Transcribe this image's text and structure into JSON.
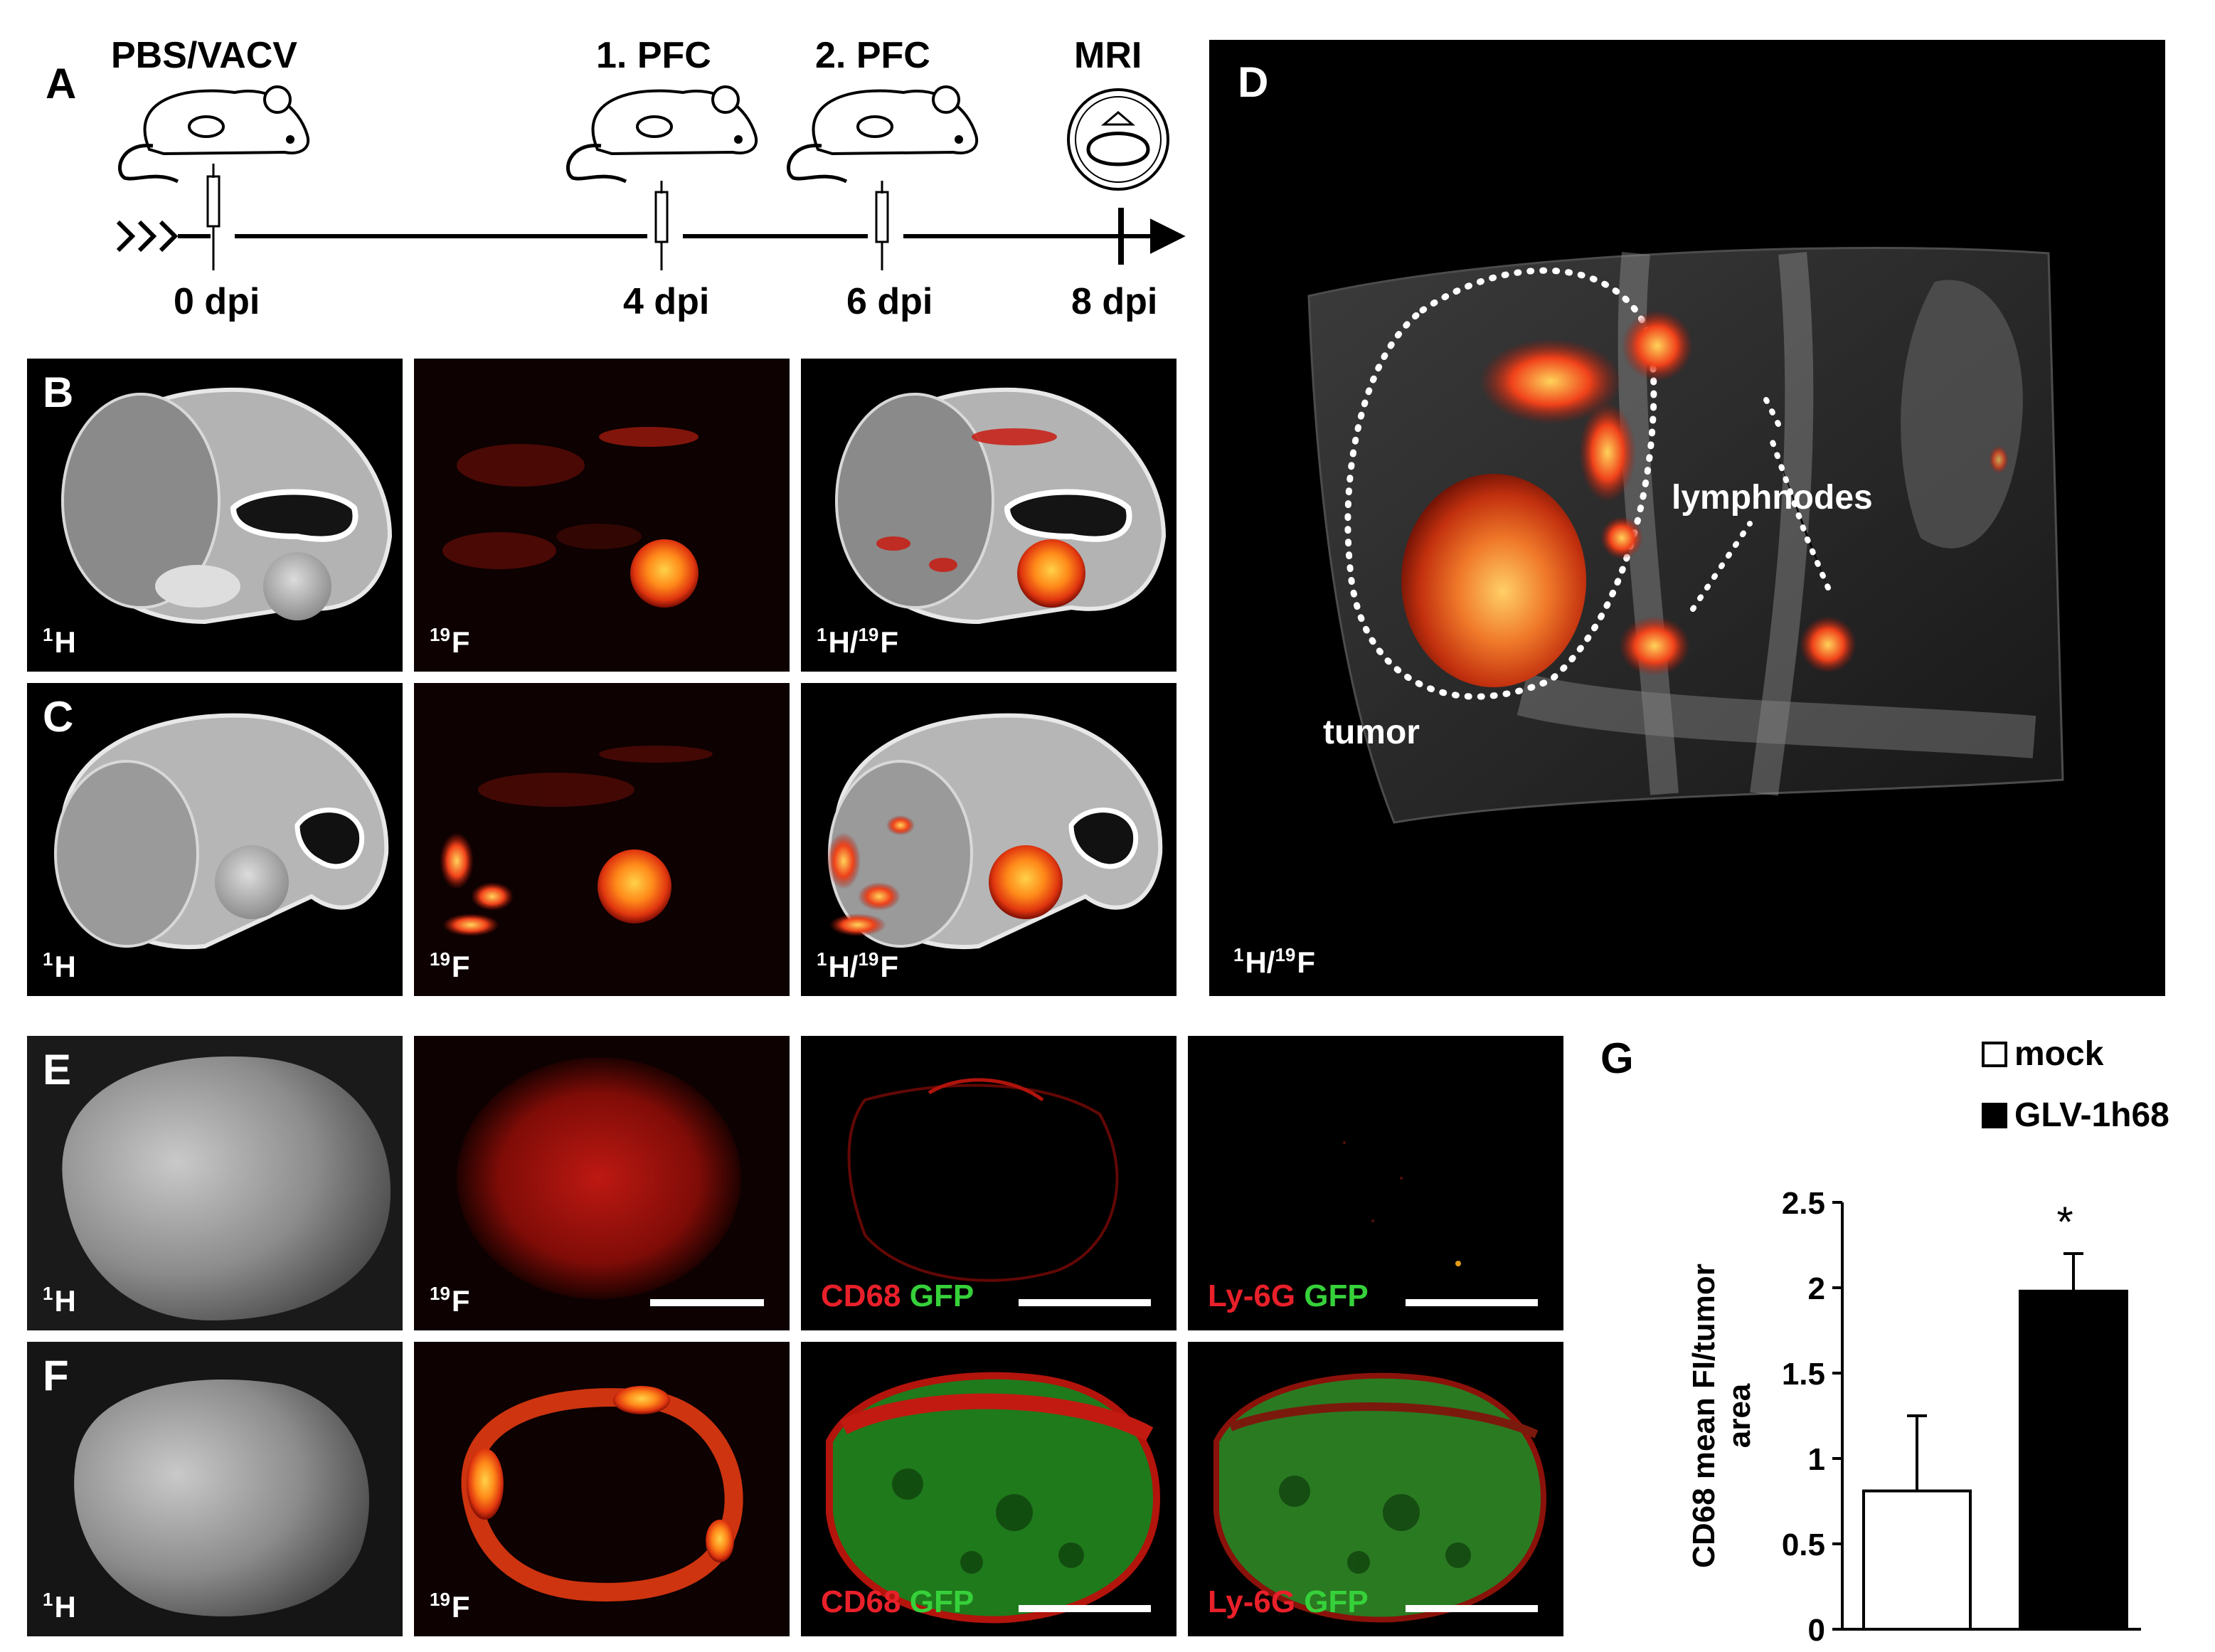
{
  "panels": {
    "A": {
      "label": "A",
      "labels": [
        "PBS/VACV",
        "1. PFC",
        "2. PFC",
        "MRI"
      ],
      "days": [
        "0 dpi",
        "4 dpi",
        "6 dpi",
        "8 dpi"
      ]
    },
    "B": {
      "label": "B",
      "nuclei": [
        "H",
        "F",
        "H/"
      ],
      "iso": [
        "1",
        "19",
        "1",
        "19"
      ]
    },
    "C": {
      "label": "C"
    },
    "D": {
      "label": "D",
      "annotations": {
        "tumor": "tumor",
        "lymphnodes": "lymphnodes"
      },
      "overlay_a": "1",
      "overlay_b": "19"
    },
    "E": {
      "label": "E"
    },
    "F": {
      "label": "F"
    },
    "stains": {
      "cd68": "CD68",
      "ly6g": "Ly-6G",
      "gfp": "GFP"
    },
    "G": {
      "label": "G"
    }
  },
  "chart_data": {
    "type": "bar",
    "categories": [
      "mock",
      "GLV-1h68"
    ],
    "values": [
      0.81,
      1.98
    ],
    "errors": [
      0.44,
      0.22
    ],
    "ylabel": "CD68 mean FI/tumor area",
    "ylim": [
      0,
      2.5
    ],
    "yticks": [
      "0",
      "0.5",
      "1",
      "1.5",
      "2",
      "2.5"
    ],
    "significance": "*",
    "legend": [
      {
        "name": "mock",
        "color": "#ffffff"
      },
      {
        "name": "GLV-1h68",
        "color": "#000000"
      }
    ],
    "legend_position": "top",
    "grid": false
  }
}
